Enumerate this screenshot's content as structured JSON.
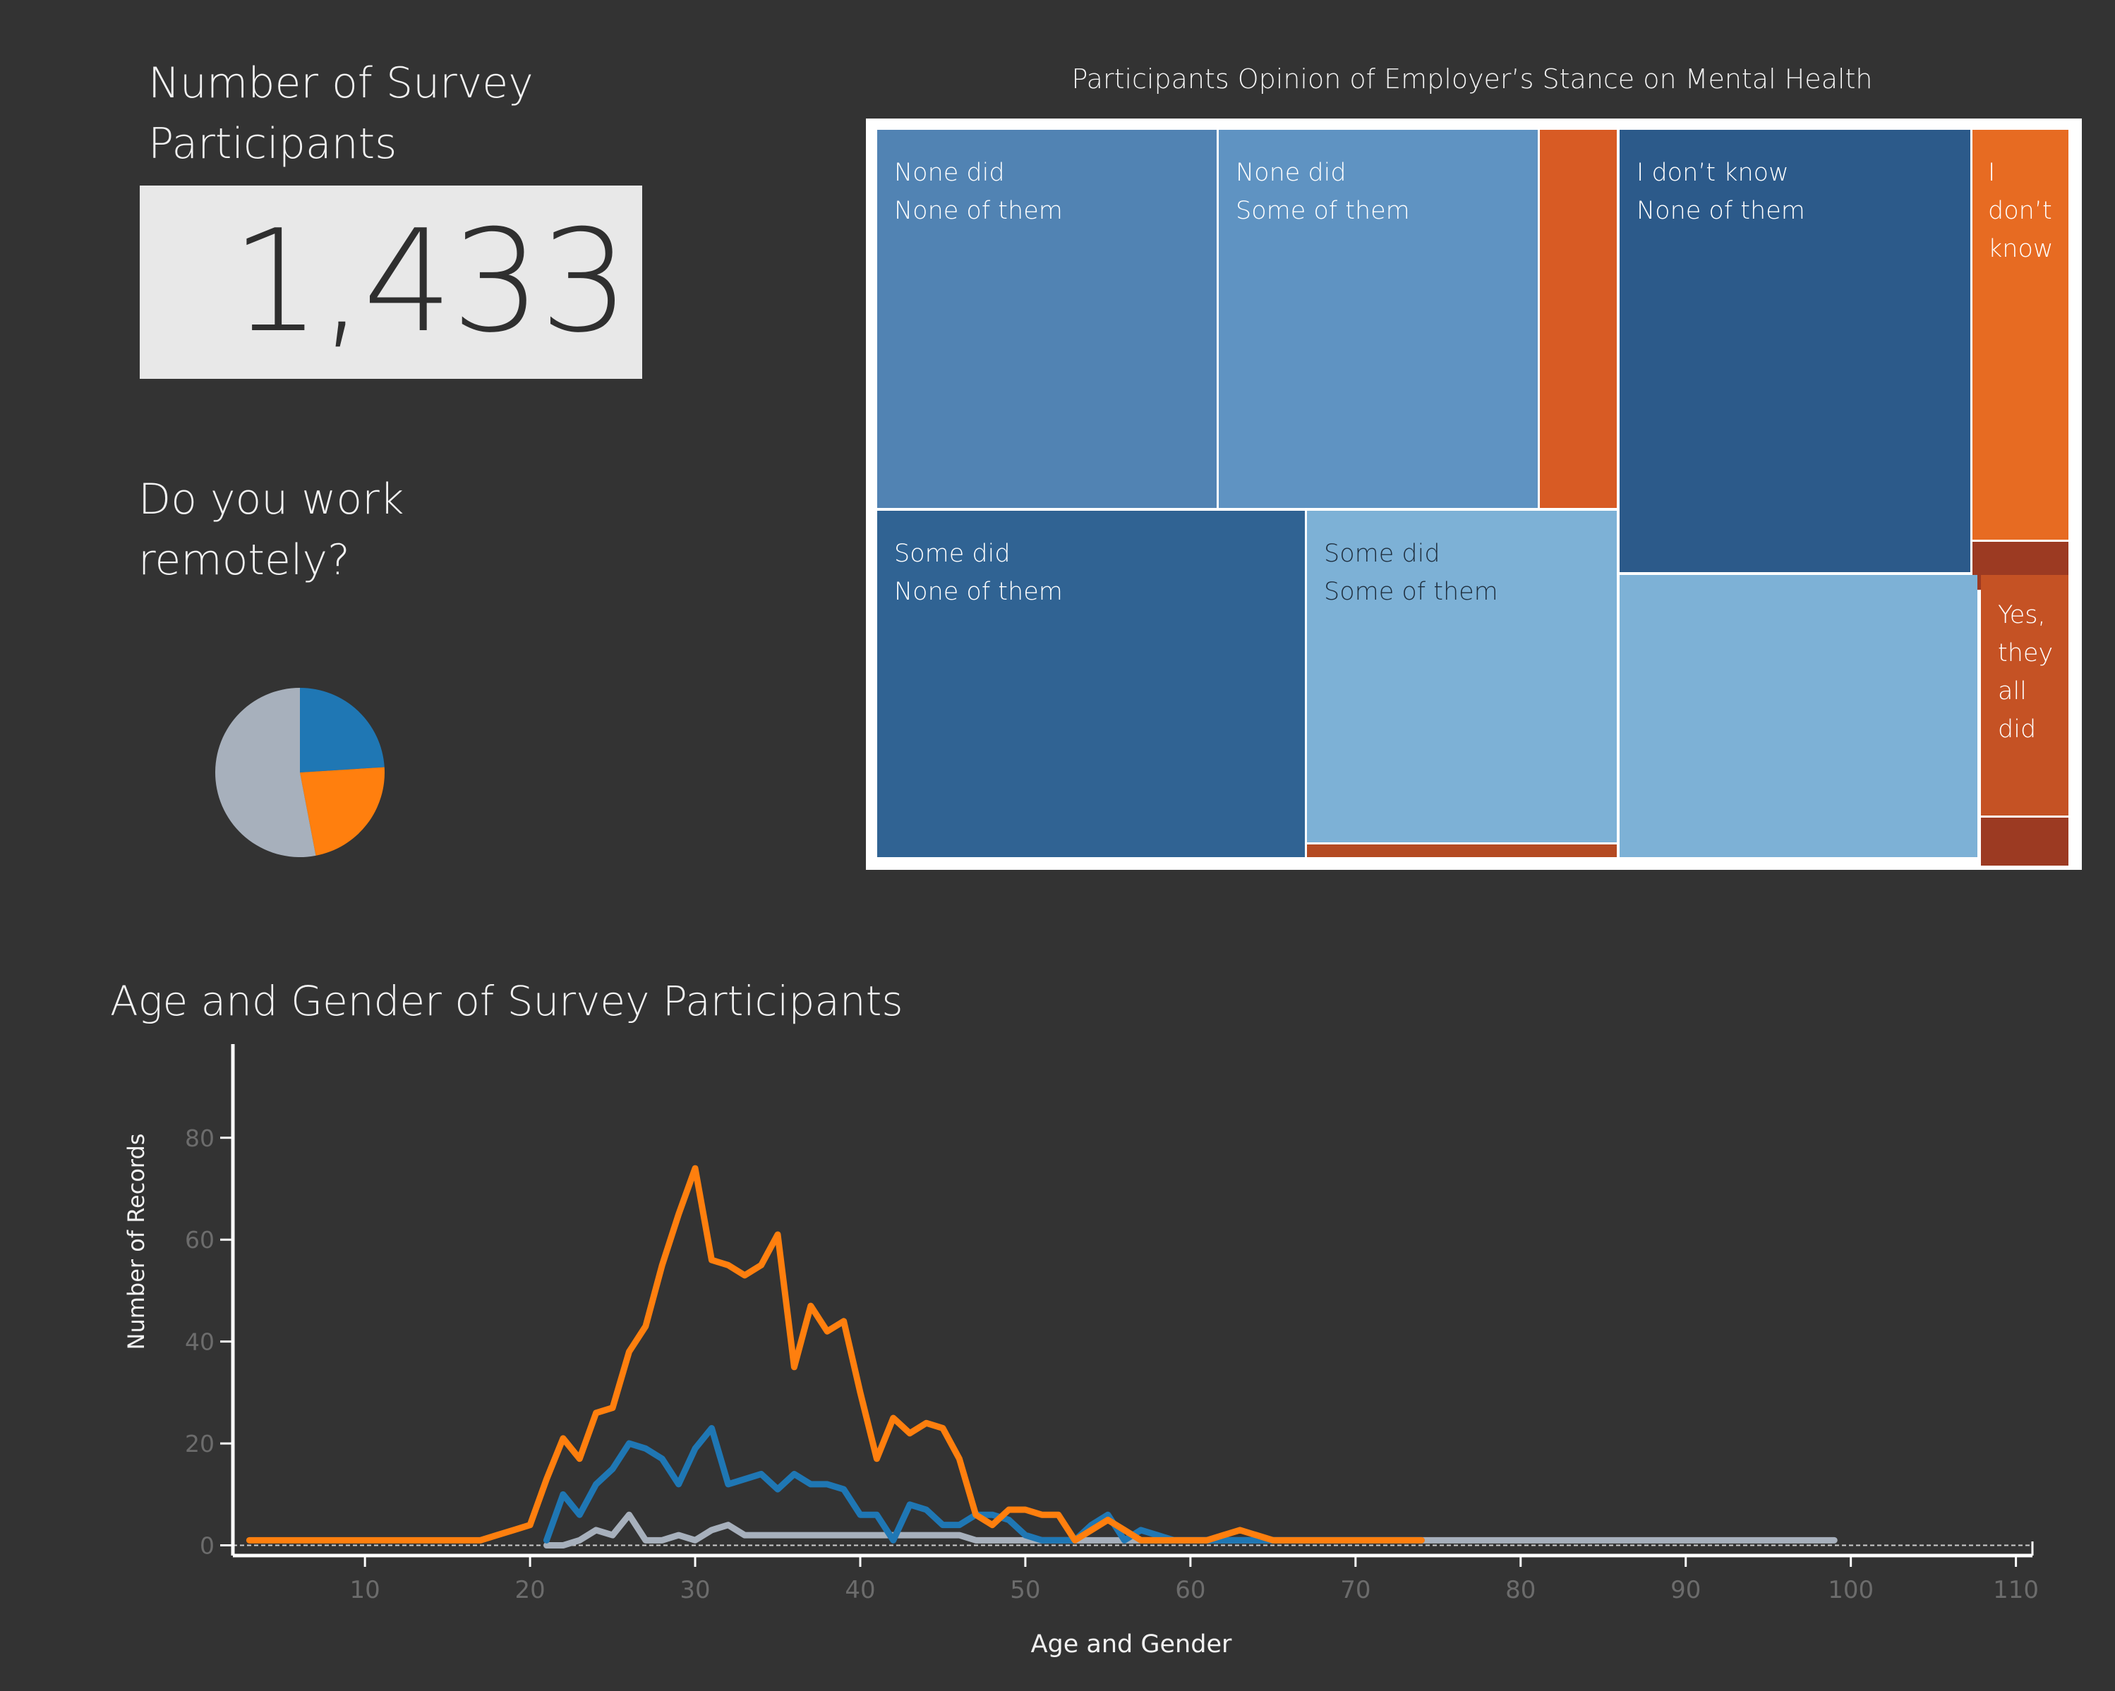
{
  "kpi": {
    "title_line1": "Number of Survey",
    "title_line2": "Participants",
    "value": "1,433"
  },
  "remote": {
    "title_line1": "Do you work",
    "title_line2": "remotely?"
  },
  "treemap": {
    "title": "Participants Opinion of Employer’s Stance on Mental Health",
    "cells": [
      {
        "label1": "None did",
        "label2": "None of them",
        "color": "#5183b3"
      },
      {
        "label1": "None did",
        "label2": "Some of them",
        "color": "#5f93c2"
      },
      {
        "label1": "",
        "label2": "",
        "color": "#d85b24"
      },
      {
        "label1": "I don’t know",
        "label2": "None of them",
        "color": "#2c5a8a"
      },
      {
        "label1": "I",
        "label2": "don’t",
        "label3": "know",
        "color": "#e76b22"
      },
      {
        "label1": "",
        "label2": "",
        "color": "#9c3a22"
      },
      {
        "label1": "Some did",
        "label2": "None of them",
        "color": "#306393"
      },
      {
        "label1": "Some did",
        "label2": "Some of them",
        "color": "#7db1d6"
      },
      {
        "label1": "",
        "label2": "",
        "color": "#b44a22"
      },
      {
        "label1": "",
        "label2": "",
        "color": "#7db1d6"
      },
      {
        "label1": "Yes,",
        "label2": "they",
        "label3": "all",
        "label4": "did",
        "color": "#c55224"
      },
      {
        "label1": "",
        "label2": "",
        "color": "#9c3a22"
      }
    ]
  },
  "colors": {
    "blue": "#1f77b4",
    "orange": "#ff7f0e",
    "gray": "#a7b0bc",
    "background": "#333333"
  },
  "chart_data": [
    {
      "type": "pie",
      "slices": [
        {
          "value": 24,
          "color": "#1f77b4"
        },
        {
          "value": 23,
          "color": "#ff7f0e"
        },
        {
          "value": 53,
          "color": "#a7b0bc"
        }
      ]
    },
    {
      "type": "line",
      "title": "Age and Gender of Survey Participants",
      "xlabel": "Age and Gender",
      "ylabel": "Number of Records",
      "xlim": [
        2,
        111
      ],
      "ylim": [
        -2,
        97
      ],
      "xticks": [
        10,
        20,
        30,
        40,
        50,
        60,
        70,
        80,
        90,
        100,
        110
      ],
      "yticks": [
        0,
        20,
        40,
        60,
        80
      ],
      "series": [
        {
          "color": "#ff7f0e",
          "x": [
            3,
            17,
            18,
            19,
            20,
            21,
            22,
            23,
            24,
            25,
            26,
            27,
            28,
            29,
            30,
            31,
            32,
            33,
            34,
            35,
            36,
            37,
            38,
            39,
            40,
            41,
            42,
            43,
            44,
            45,
            46,
            47,
            48,
            49,
            50,
            51,
            52,
            53,
            54,
            55,
            56,
            57,
            58,
            59,
            60,
            61,
            62,
            63,
            64,
            65,
            66,
            67,
            74
          ],
          "y": [
            1,
            1,
            2,
            3,
            4,
            13,
            21,
            17,
            26,
            27,
            38,
            43,
            55,
            65,
            74,
            56,
            55,
            53,
            55,
            61,
            35,
            47,
            42,
            44,
            30,
            17,
            25,
            22,
            24,
            23,
            17,
            6,
            4,
            7,
            7,
            6,
            6,
            1,
            3,
            5,
            3,
            1,
            1,
            1,
            1,
            1,
            2,
            3,
            2,
            1,
            1,
            1,
            1
          ]
        },
        {
          "color": "#1f77b4",
          "x": [
            21,
            22,
            23,
            24,
            25,
            26,
            27,
            28,
            29,
            30,
            31,
            32,
            33,
            34,
            35,
            36,
            37,
            38,
            39,
            40,
            41,
            42,
            43,
            44,
            45,
            46,
            47,
            48,
            49,
            50,
            51,
            52,
            53,
            54,
            55,
            56,
            57,
            58,
            59,
            60,
            61,
            62,
            63,
            64,
            65,
            74
          ],
          "y": [
            1,
            10,
            6,
            12,
            15,
            20,
            19,
            17,
            12,
            19,
            23,
            12,
            13,
            14,
            11,
            14,
            12,
            12,
            11,
            6,
            6,
            1,
            8,
            7,
            4,
            4,
            6,
            6,
            5,
            2,
            1,
            1,
            1,
            4,
            6,
            1,
            3,
            2,
            1,
            1,
            1,
            1,
            1,
            1,
            1,
            1
          ]
        },
        {
          "color": "#a7b0bc",
          "x": [
            21,
            22,
            23,
            24,
            25,
            26,
            27,
            28,
            29,
            30,
            31,
            32,
            33,
            34,
            35,
            36,
            37,
            38,
            39,
            40,
            41,
            42,
            43,
            44,
            45,
            46,
            47,
            48,
            49,
            50,
            60,
            61,
            62,
            63,
            74,
            99
          ],
          "y": [
            0,
            0,
            1,
            3,
            2,
            6,
            1,
            1,
            2,
            1,
            3,
            4,
            2,
            2,
            2,
            2,
            2,
            2,
            2,
            2,
            2,
            2,
            2,
            2,
            2,
            2,
            1,
            1,
            1,
            1,
            1,
            1,
            1,
            1,
            1,
            1
          ]
        }
      ]
    }
  ]
}
